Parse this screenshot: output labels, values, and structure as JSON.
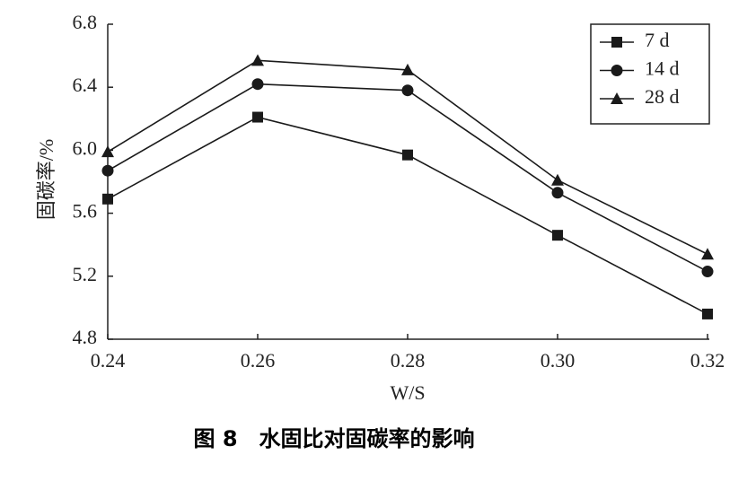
{
  "chart_data": {
    "type": "line",
    "caption": "图 8　水固比对固碳率的影响",
    "x_label": "W/S",
    "y_label": "固碳率/%",
    "x": [
      0.24,
      0.26,
      0.28,
      0.3,
      0.32
    ],
    "xlim": [
      0.24,
      0.32
    ],
    "xticks": [
      0.24,
      0.26,
      0.28,
      {
        "value": 0.3,
        "label": "0.30"
      },
      0.32
    ],
    "ylim": [
      4.8,
      6.8
    ],
    "yticks": [
      4.8,
      5.2,
      5.6,
      {
        "value": 6,
        "label": "6.0"
      },
      6.4,
      6.8
    ],
    "legend": "top-right",
    "series": [
      {
        "name": "7 d",
        "color": "#1a1a1a",
        "marker": "square",
        "values": [
          5.69,
          6.21,
          5.97,
          5.46,
          4.96
        ]
      },
      {
        "name": "14 d",
        "color": "#1a1a1a",
        "marker": "circle",
        "values": [
          5.87,
          6.42,
          6.38,
          5.73,
          5.23
        ]
      },
      {
        "name": "28 d",
        "color": "#1a1a1a",
        "marker": "triangle",
        "values": [
          5.99,
          6.57,
          6.51,
          5.81,
          5.34
        ]
      }
    ]
  }
}
